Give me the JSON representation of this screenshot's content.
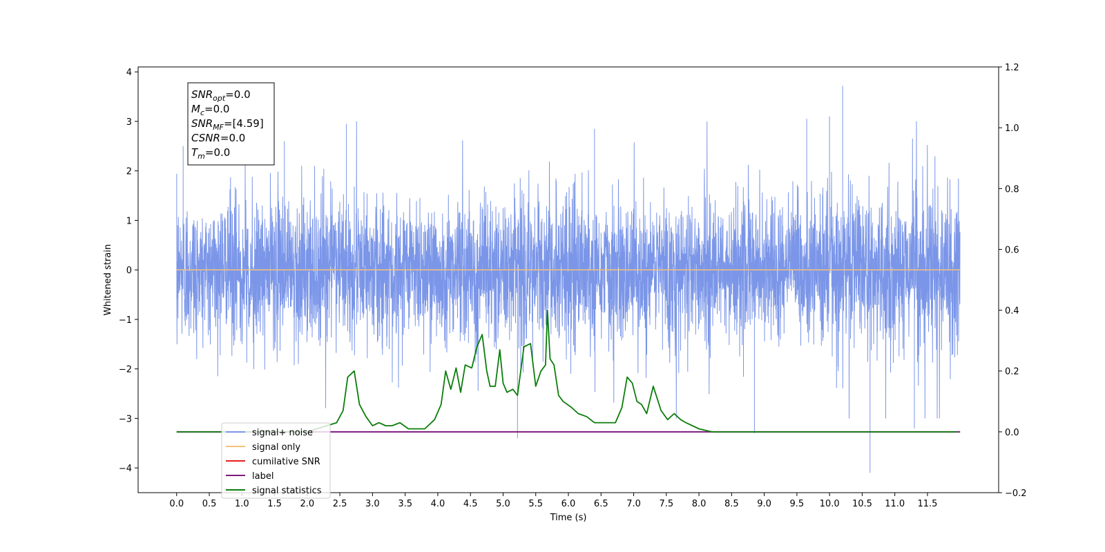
{
  "chart_data": {
    "type": "line",
    "xlabel": "Time (s)",
    "ylabel": "Whitened strain",
    "xlim": [
      -0.59,
      12.59
    ],
    "x_ticks": [
      "0.0",
      "0.5",
      "1.0",
      "1.5",
      "2.0",
      "2.5",
      "3.0",
      "3.5",
      "4.0",
      "4.5",
      "5.0",
      "5.5",
      "6.0",
      "6.5",
      "7.0",
      "7.5",
      "8.0",
      "8.5",
      "9.0",
      "9.5",
      "10.0",
      "10.5",
      "11.0",
      "11.5"
    ],
    "ylim": [
      -4.5,
      4.1
    ],
    "y_ticks": [
      "4",
      "3",
      "2",
      "1",
      "0",
      "−1",
      "−2",
      "−3",
      "−4"
    ],
    "ylim_right": [
      -0.2,
      1.2
    ],
    "y_ticks_right": [
      "1.2",
      "1.0",
      "0.8",
      "0.6",
      "0.4",
      "0.2",
      "0.0",
      "−0.2"
    ],
    "grid": false,
    "legend_position": "lower-left",
    "annotation_box": [
      {
        "sym": "SNR",
        "sub": "opt",
        "value": "=0.0"
      },
      {
        "sym": "M",
        "sub": "c",
        "value": "=0.0"
      },
      {
        "sym": "SNR",
        "sub": "MF",
        "value": "=[4.59]"
      },
      {
        "sym": "CSNR",
        "sub": "",
        "value": "=0.0"
      },
      {
        "sym": "T",
        "sub": "m",
        "value": "=0.0"
      }
    ],
    "series": [
      {
        "name": "signal+ noise",
        "color": "#7b96e8",
        "axis": "left",
        "x_range": [
          0.0,
          12.0
        ],
        "description_of_values": "white noise, approx std 0.75, extremes",
        "notable_peaks": [
          [
            0.1,
            2.5
          ],
          [
            1.65,
            2.6
          ],
          [
            2.6,
            2.95
          ],
          [
            5.22,
            -3.4
          ],
          [
            6.4,
            2.85
          ],
          [
            8.85,
            -3.3
          ],
          [
            9.65,
            3.05
          ],
          [
            10.0,
            3.1
          ],
          [
            10.2,
            3.72
          ],
          [
            10.62,
            -4.1
          ],
          [
            11.3,
            -3.2
          ]
        ]
      },
      {
        "name": "signal only",
        "color": "#f5c27a",
        "axis": "left",
        "x": [
          0.0,
          12.0
        ],
        "y": [
          0.0,
          0.0
        ]
      },
      {
        "name": "cumilative SNR",
        "color": "#e8201a",
        "axis": "right",
        "x": [],
        "y": []
      },
      {
        "name": "label",
        "color": "#7b1a7b",
        "axis": "right",
        "x": [
          0.0,
          12.0
        ],
        "y": [
          0.0,
          0.0
        ]
      },
      {
        "name": "signal statistics",
        "color": "#0a7d0a",
        "axis": "right",
        "x": [
          0.0,
          1.0,
          2.0,
          2.3,
          2.45,
          2.55,
          2.62,
          2.72,
          2.8,
          2.9,
          3.0,
          3.1,
          3.2,
          3.3,
          3.42,
          3.55,
          3.65,
          3.8,
          3.95,
          4.05,
          4.12,
          4.2,
          4.28,
          4.35,
          4.42,
          4.52,
          4.6,
          4.68,
          4.75,
          4.8,
          4.88,
          4.95,
          5.0,
          5.06,
          5.15,
          5.22,
          5.32,
          5.42,
          5.5,
          5.58,
          5.65,
          5.68,
          5.72,
          5.78,
          5.85,
          5.92,
          6.05,
          6.15,
          6.28,
          6.4,
          6.55,
          6.72,
          6.82,
          6.9,
          6.98,
          7.05,
          7.12,
          7.2,
          7.3,
          7.42,
          7.52,
          7.62,
          7.72,
          7.8,
          7.9,
          8.0,
          8.2,
          9.0,
          10.0,
          11.0,
          11.95
        ],
        "y": [
          0.0,
          0.0,
          0.0,
          0.02,
          0.03,
          0.07,
          0.18,
          0.2,
          0.09,
          0.05,
          0.02,
          0.03,
          0.02,
          0.02,
          0.03,
          0.01,
          0.01,
          0.01,
          0.04,
          0.09,
          0.2,
          0.14,
          0.21,
          0.13,
          0.22,
          0.21,
          0.28,
          0.32,
          0.2,
          0.15,
          0.15,
          0.27,
          0.16,
          0.13,
          0.14,
          0.12,
          0.28,
          0.29,
          0.15,
          0.2,
          0.22,
          0.4,
          0.24,
          0.22,
          0.12,
          0.1,
          0.08,
          0.06,
          0.05,
          0.03,
          0.03,
          0.03,
          0.08,
          0.18,
          0.16,
          0.1,
          0.09,
          0.06,
          0.15,
          0.07,
          0.04,
          0.06,
          0.04,
          0.03,
          0.02,
          0.01,
          0.0,
          0.0,
          0.0,
          0.0,
          0.0
        ]
      }
    ]
  }
}
